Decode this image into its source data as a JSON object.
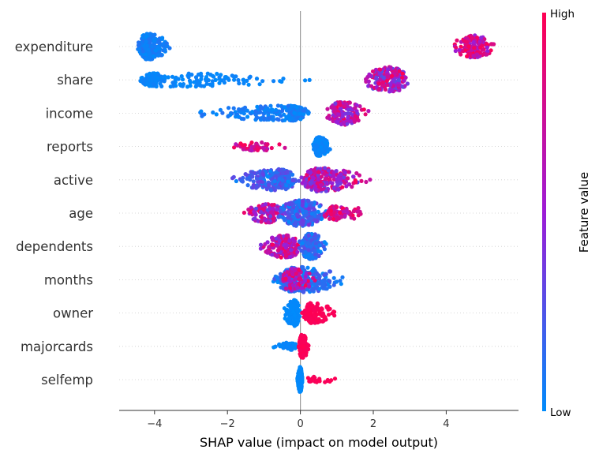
{
  "chart_data": {
    "type": "scatter",
    "subtype": "shap-beeswarm-summary",
    "xlabel": "SHAP value (impact on model output)",
    "xlim": [
      -5,
      5.75
    ],
    "xticks": [
      -4,
      -2,
      0,
      2,
      4
    ],
    "xtick_labels": [
      "−4",
      "−2",
      "0",
      "2",
      "4"
    ],
    "zero_line": 0,
    "grid": false,
    "features": [
      {
        "name": "expenditure",
        "clusters": [
          {
            "x_min": -4.5,
            "x_max": -3.5,
            "center": -4.2,
            "fv_min": 0.0,
            "fv_max": 0.12,
            "n": 260,
            "spread": 1.0
          },
          {
            "x_min": 4.1,
            "x_max": 5.4,
            "center": 4.75,
            "fv_min": 0.45,
            "fv_max": 1.0,
            "n": 150,
            "spread": 0.85
          }
        ]
      },
      {
        "name": "share",
        "clusters": [
          {
            "x_min": -4.5,
            "x_max": 0.35,
            "center": -3.9,
            "fv_min": 0.0,
            "fv_max": 0.05,
            "n": 200,
            "spread": 0.5
          },
          {
            "x_min": 1.6,
            "x_max": 3.0,
            "center": 2.5,
            "fv_min": 0.2,
            "fv_max": 1.0,
            "n": 200,
            "spread": 1.0
          }
        ]
      },
      {
        "name": "income",
        "clusters": [
          {
            "x_min": -3.3,
            "x_max": 0.3,
            "center": -0.3,
            "fv_min": 0.0,
            "fv_max": 0.12,
            "n": 240,
            "spread": 0.55
          },
          {
            "x_min": 0.6,
            "x_max": 1.9,
            "center": 1.2,
            "fv_min": 0.35,
            "fv_max": 1.0,
            "n": 150,
            "spread": 0.9
          }
        ]
      },
      {
        "name": "reports",
        "clusters": [
          {
            "x_min": -2.0,
            "x_max": -0.4,
            "center": -1.2,
            "fv_min": 0.5,
            "fv_max": 1.0,
            "n": 50,
            "spread": 0.25
          },
          {
            "x_min": 0.35,
            "x_max": 0.85,
            "center": 0.5,
            "fv_min": 0.0,
            "fv_max": 0.05,
            "n": 260,
            "spread": 0.7
          }
        ]
      },
      {
        "name": "active",
        "clusters": [
          {
            "x_min": -2.0,
            "x_max": 0.0,
            "center": -0.6,
            "fv_min": 0.0,
            "fv_max": 0.35,
            "n": 240,
            "spread": 0.8
          },
          {
            "x_min": 0.0,
            "x_max": 2.0,
            "center": 0.5,
            "fv_min": 0.3,
            "fv_max": 1.0,
            "n": 260,
            "spread": 0.9
          }
        ]
      },
      {
        "name": "age",
        "clusters": [
          {
            "x_min": -1.6,
            "x_max": -0.4,
            "center": -0.9,
            "fv_min": 0.3,
            "fv_max": 0.95,
            "n": 120,
            "spread": 0.7
          },
          {
            "x_min": -0.7,
            "x_max": 0.9,
            "center": 0.0,
            "fv_min": 0.0,
            "fv_max": 0.4,
            "n": 250,
            "spread": 1.0
          },
          {
            "x_min": 0.6,
            "x_max": 2.0,
            "center": 1.0,
            "fv_min": 0.55,
            "fv_max": 1.0,
            "n": 90,
            "spread": 0.55
          }
        ]
      },
      {
        "name": "dependents",
        "clusters": [
          {
            "x_min": -1.2,
            "x_max": 0.1,
            "center": -0.4,
            "fv_min": 0.4,
            "fv_max": 1.0,
            "n": 160,
            "spread": 0.85
          },
          {
            "x_min": -0.1,
            "x_max": 0.75,
            "center": 0.3,
            "fv_min": 0.0,
            "fv_max": 0.3,
            "n": 200,
            "spread": 1.0
          }
        ]
      },
      {
        "name": "months",
        "clusters": [
          {
            "x_min": -0.75,
            "x_max": 1.4,
            "center": -0.1,
            "fv_min": 0.0,
            "fv_max": 0.25,
            "n": 270,
            "spread": 1.0
          },
          {
            "x_min": -0.6,
            "x_max": 0.5,
            "center": -0.2,
            "fv_min": 0.45,
            "fv_max": 1.0,
            "n": 90,
            "spread": 0.85
          }
        ]
      },
      {
        "name": "owner",
        "clusters": [
          {
            "x_min": -0.5,
            "x_max": 0.0,
            "center": -0.15,
            "fv_min": 0.0,
            "fv_max": 0.02,
            "n": 160,
            "spread": 1.0
          },
          {
            "x_min": 0.05,
            "x_max": 1.05,
            "center": 0.3,
            "fv_min": 0.96,
            "fv_max": 1.0,
            "n": 150,
            "spread": 0.75
          }
        ]
      },
      {
        "name": "majorcards",
        "clusters": [
          {
            "x_min": -0.75,
            "x_max": -0.05,
            "center": -0.3,
            "fv_min": 0.0,
            "fv_max": 0.05,
            "n": 60,
            "spread": 0.22
          },
          {
            "x_min": -0.05,
            "x_max": 0.25,
            "center": 0.05,
            "fv_min": 0.96,
            "fv_max": 1.0,
            "n": 170,
            "spread": 0.9
          }
        ]
      },
      {
        "name": "selfemp",
        "clusters": [
          {
            "x_min": -0.08,
            "x_max": 0.05,
            "center": 0.0,
            "fv_min": 0.0,
            "fv_max": 0.02,
            "n": 200,
            "spread": 1.0
          },
          {
            "x_min": 0.1,
            "x_max": 1.05,
            "center": 0.4,
            "fv_min": 0.96,
            "fv_max": 1.0,
            "n": 24,
            "spread": 0.15
          }
        ]
      }
    ],
    "colorbar": {
      "high_label": "High",
      "low_label": "Low",
      "title": "Feature value",
      "color_low": "#008bfb",
      "color_mid": "#9d1bd6",
      "color_high": "#ff0052"
    }
  }
}
